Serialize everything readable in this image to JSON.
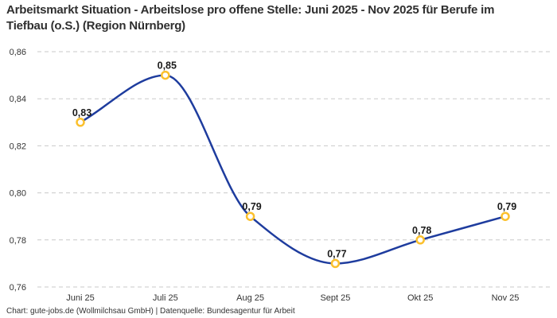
{
  "title": "Arbeitsmarkt Situation - Arbeitslose pro offene Stelle: Juni 2025 - Nov 2025 für Berufe im Tiefbau (o.S.) (Region Nürnberg)",
  "footer": "Chart: gute-jobs.de (Wollmilchsau GmbH) | Datenquelle: Bundesagentur für Arbeit",
  "chart_data": {
    "type": "line",
    "title": "Arbeitsmarkt Situation - Arbeitslose pro offene Stelle: Juni 2025 - Nov 2025 für Berufe im Tiefbau (o.S.) (Region Nürnberg)",
    "categories": [
      "Juni 25",
      "Juli 25",
      "Aug 25",
      "Sept 25",
      "Okt 25",
      "Nov 25"
    ],
    "values": [
      0.83,
      0.85,
      0.79,
      0.77,
      0.78,
      0.79
    ],
    "point_labels": [
      "0,83",
      "0,85",
      "0,79",
      "0,77",
      "0,78",
      "0,79"
    ],
    "y_ticks": [
      0.86,
      0.84,
      0.82,
      0.8,
      0.78,
      0.76
    ],
    "y_tick_labels": [
      "0,86",
      "0,84",
      "0,82",
      "0,80",
      "0,78",
      "0,76"
    ],
    "ylim": [
      0.76,
      0.86
    ],
    "xlabel": "",
    "ylabel": "",
    "grid": "horizontal-dashed",
    "legend": "none",
    "smoothing": "monotone",
    "line_color": "#1e3c9e",
    "marker_stroke_color": "#fbc02d",
    "marker_fill_color": "#ffffff",
    "grid_color": "#c9c9c9",
    "label_color": "#1a1a1a",
    "axis_text_color": "#333333"
  }
}
